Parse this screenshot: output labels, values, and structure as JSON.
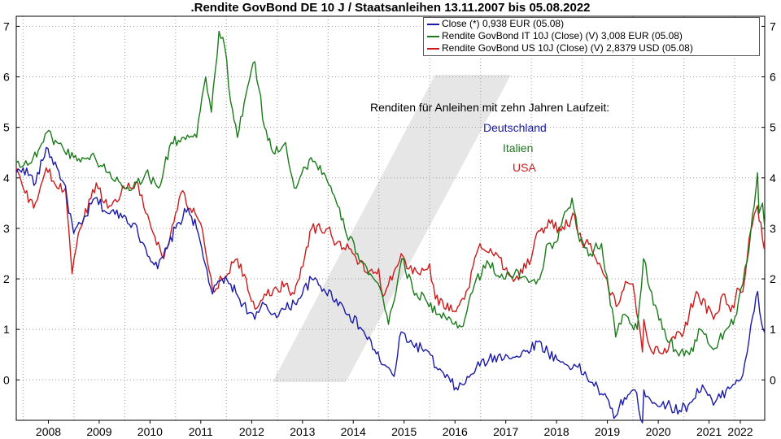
{
  "chart_data": {
    "type": "line",
    "title": ".Rendite GovBond DE 10 J / Staatsanleihen 13.11.2007 bis 05.08.2022",
    "xlabel": "",
    "ylabel": "",
    "xlim": [
      "2007-11-13",
      "2022-08-05"
    ],
    "ylim": [
      -0.8,
      7.2
    ],
    "y_ticks": [
      0,
      1,
      2,
      3,
      4,
      5,
      6,
      7
    ],
    "x_ticks": [
      "2008",
      "2009",
      "2010",
      "2011",
      "2012",
      "2013",
      "2014",
      "2015",
      "2016",
      "2017",
      "2018",
      "2019",
      "2020",
      "2021",
      "2022"
    ],
    "grid": true,
    "legend_position": "top-right",
    "legend": [
      "Close (*) 0,938 EUR (05.08)",
      "Rendite GovBond IT 10J (Close) (V) 3,008 EUR (05.08)",
      "Rendite GovBond US 10J (Close) (V) 2,8379 USD (05.08)"
    ],
    "annotations": {
      "heading": "Renditen für Anleihen mit zehn Jahren Laufzeit:",
      "de": "Deutschland",
      "it": "Italien",
      "us": "USA"
    },
    "series": [
      {
        "name": "Close (*) 0,938 EUR (05.08)",
        "color": "#1a1aa8",
        "points": [
          [
            "2007-11-13",
            4.1
          ],
          [
            "2008-01-01",
            4.2
          ],
          [
            "2008-04-01",
            3.9
          ],
          [
            "2008-06-15",
            4.6
          ],
          [
            "2008-09-01",
            4.2
          ],
          [
            "2008-10-20",
            3.9
          ],
          [
            "2008-12-30",
            2.9
          ],
          [
            "2009-03-01",
            3.1
          ],
          [
            "2009-06-01",
            3.6
          ],
          [
            "2009-09-01",
            3.3
          ],
          [
            "2009-12-01",
            3.3
          ],
          [
            "2010-03-01",
            3.1
          ],
          [
            "2010-06-01",
            2.6
          ],
          [
            "2010-08-25",
            2.2
          ],
          [
            "2010-11-01",
            2.6
          ],
          [
            "2011-01-01",
            3.0
          ],
          [
            "2011-04-01",
            3.4
          ],
          [
            "2011-06-01",
            3.0
          ],
          [
            "2011-08-01",
            2.3
          ],
          [
            "2011-09-23",
            1.7
          ],
          [
            "2011-12-01",
            2.0
          ],
          [
            "2012-02-01",
            1.9
          ],
          [
            "2012-05-01",
            1.5
          ],
          [
            "2012-07-23",
            1.2
          ],
          [
            "2012-10-01",
            1.5
          ],
          [
            "2012-12-01",
            1.3
          ],
          [
            "2013-03-01",
            1.4
          ],
          [
            "2013-06-01",
            1.6
          ],
          [
            "2013-09-05",
            2.0
          ],
          [
            "2013-12-01",
            1.8
          ],
          [
            "2014-03-01",
            1.6
          ],
          [
            "2014-06-01",
            1.3
          ],
          [
            "2014-09-01",
            1.0
          ],
          [
            "2014-12-01",
            0.6
          ],
          [
            "2015-02-01",
            0.3
          ],
          [
            "2015-04-20",
            0.07
          ],
          [
            "2015-06-10",
            0.95
          ],
          [
            "2015-09-01",
            0.7
          ],
          [
            "2015-12-01",
            0.6
          ],
          [
            "2016-03-01",
            0.2
          ],
          [
            "2016-07-08",
            -0.15
          ],
          [
            "2016-09-01",
            -0.1
          ],
          [
            "2016-12-01",
            0.25
          ],
          [
            "2017-03-01",
            0.4
          ],
          [
            "2017-07-01",
            0.5
          ],
          [
            "2017-10-01",
            0.45
          ],
          [
            "2018-02-15",
            0.75
          ],
          [
            "2018-05-01",
            0.55
          ],
          [
            "2018-08-01",
            0.35
          ],
          [
            "2018-12-01",
            0.25
          ],
          [
            "2019-03-15",
            -0.05
          ],
          [
            "2019-06-01",
            -0.3
          ],
          [
            "2019-08-30",
            -0.72
          ],
          [
            "2019-11-01",
            -0.35
          ],
          [
            "2020-01-15",
            -0.2
          ],
          [
            "2020-03-09",
            -0.85
          ],
          [
            "2020-03-19",
            -0.2
          ],
          [
            "2020-06-01",
            -0.45
          ],
          [
            "2020-09-01",
            -0.5
          ],
          [
            "2020-12-01",
            -0.6
          ],
          [
            "2021-02-01",
            -0.5
          ],
          [
            "2021-05-15",
            -0.1
          ],
          [
            "2021-08-01",
            -0.5
          ],
          [
            "2021-11-01",
            -0.2
          ],
          [
            "2022-01-15",
            0.0
          ],
          [
            "2022-03-01",
            0.1
          ],
          [
            "2022-04-15",
            0.8
          ],
          [
            "2022-06-15",
            1.75
          ],
          [
            "2022-07-15",
            1.1
          ],
          [
            "2022-08-05",
            0.938
          ]
        ]
      },
      {
        "name": "Rendite GovBond IT 10J (Close) (V) 3,008 EUR (05.08)",
        "color": "#1a7a1a",
        "points": [
          [
            "2007-11-13",
            4.3
          ],
          [
            "2008-03-01",
            4.3
          ],
          [
            "2008-06-20",
            4.9
          ],
          [
            "2008-09-01",
            4.7
          ],
          [
            "2008-12-30",
            4.4
          ],
          [
            "2009-03-01",
            4.4
          ],
          [
            "2009-06-01",
            4.4
          ],
          [
            "2009-09-01",
            4.1
          ],
          [
            "2009-12-01",
            3.9
          ],
          [
            "2010-03-01",
            3.8
          ],
          [
            "2010-06-01",
            4.1
          ],
          [
            "2010-09-01",
            3.8
          ],
          [
            "2010-12-01",
            4.7
          ],
          [
            "2011-03-01",
            4.8
          ],
          [
            "2011-06-01",
            4.8
          ],
          [
            "2011-08-05",
            6.0
          ],
          [
            "2011-09-15",
            5.3
          ],
          [
            "2011-11-09",
            6.9
          ],
          [
            "2011-12-20",
            6.6
          ],
          [
            "2012-02-01",
            5.5
          ],
          [
            "2012-03-20",
            4.8
          ],
          [
            "2012-06-01",
            5.8
          ],
          [
            "2012-07-24",
            6.3
          ],
          [
            "2012-10-01",
            5.0
          ],
          [
            "2012-12-01",
            4.5
          ],
          [
            "2013-03-01",
            4.7
          ],
          [
            "2013-05-03",
            3.8
          ],
          [
            "2013-09-01",
            4.4
          ],
          [
            "2013-12-01",
            4.1
          ],
          [
            "2014-02-01",
            3.7
          ],
          [
            "2014-05-01",
            3.0
          ],
          [
            "2014-08-01",
            2.5
          ],
          [
            "2014-11-01",
            2.1
          ],
          [
            "2015-02-01",
            1.6
          ],
          [
            "2015-03-11",
            1.1
          ],
          [
            "2015-06-15",
            2.4
          ],
          [
            "2015-09-01",
            1.8
          ],
          [
            "2015-12-01",
            1.6
          ],
          [
            "2016-03-01",
            1.3
          ],
          [
            "2016-08-15",
            1.05
          ],
          [
            "2016-12-01",
            2.0
          ],
          [
            "2017-03-01",
            2.3
          ],
          [
            "2017-06-15",
            2.0
          ],
          [
            "2017-09-01",
            2.1
          ],
          [
            "2017-12-01",
            2.0
          ],
          [
            "2018-03-01",
            2.0
          ],
          [
            "2018-05-01",
            2.7
          ],
          [
            "2018-06-01",
            2.6
          ],
          [
            "2018-10-20",
            3.6
          ],
          [
            "2018-12-01",
            2.9
          ],
          [
            "2019-03-01",
            2.5
          ],
          [
            "2019-05-20",
            2.7
          ],
          [
            "2019-08-30",
            0.85
          ],
          [
            "2019-11-01",
            1.3
          ],
          [
            "2020-02-01",
            1.0
          ],
          [
            "2020-03-17",
            2.4
          ],
          [
            "2020-05-01",
            1.8
          ],
          [
            "2020-08-01",
            1.0
          ],
          [
            "2020-11-01",
            0.6
          ],
          [
            "2021-02-10",
            0.5
          ],
          [
            "2021-05-01",
            1.0
          ],
          [
            "2021-08-01",
            0.6
          ],
          [
            "2021-11-01",
            1.0
          ],
          [
            "2022-01-15",
            1.3
          ],
          [
            "2022-03-01",
            1.9
          ],
          [
            "2022-04-15",
            2.6
          ],
          [
            "2022-06-14",
            4.1
          ],
          [
            "2022-06-25",
            3.3
          ],
          [
            "2022-07-20",
            3.5
          ],
          [
            "2022-08-05",
            3.008
          ]
        ]
      },
      {
        "name": "Rendite GovBond US 10J (Close) (V) 2,8379 USD (05.08)",
        "color": "#cc1a1a",
        "points": [
          [
            "2007-11-13",
            4.2
          ],
          [
            "2008-01-15",
            3.7
          ],
          [
            "2008-03-17",
            3.4
          ],
          [
            "2008-06-15",
            4.2
          ],
          [
            "2008-09-01",
            3.8
          ],
          [
            "2008-11-01",
            3.8
          ],
          [
            "2008-12-18",
            2.1
          ],
          [
            "2009-02-01",
            2.9
          ],
          [
            "2009-06-10",
            3.9
          ],
          [
            "2009-09-01",
            3.4
          ],
          [
            "2009-12-31",
            3.8
          ],
          [
            "2010-04-05",
            3.9
          ],
          [
            "2010-06-01",
            3.3
          ],
          [
            "2010-10-08",
            2.4
          ],
          [
            "2011-01-01",
            3.3
          ],
          [
            "2011-02-08",
            3.7
          ],
          [
            "2011-04-15",
            3.4
          ],
          [
            "2011-06-30",
            3.1
          ],
          [
            "2011-09-23",
            1.8
          ],
          [
            "2011-12-01",
            2.0
          ],
          [
            "2012-03-19",
            2.4
          ],
          [
            "2012-07-25",
            1.4
          ],
          [
            "2012-10-01",
            1.7
          ],
          [
            "2012-12-31",
            1.8
          ],
          [
            "2013-03-01",
            1.9
          ],
          [
            "2013-05-02",
            1.7
          ],
          [
            "2013-09-05",
            3.0
          ],
          [
            "2013-12-31",
            3.0
          ],
          [
            "2014-03-01",
            2.7
          ],
          [
            "2014-06-01",
            2.6
          ],
          [
            "2014-10-15",
            2.1
          ],
          [
            "2014-12-31",
            2.2
          ],
          [
            "2015-01-30",
            1.65
          ],
          [
            "2015-06-10",
            2.5
          ],
          [
            "2015-09-01",
            2.1
          ],
          [
            "2015-12-31",
            2.3
          ],
          [
            "2016-02-11",
            1.6
          ],
          [
            "2016-07-08",
            1.35
          ],
          [
            "2016-10-01",
            1.8
          ],
          [
            "2016-12-15",
            2.6
          ],
          [
            "2017-03-13",
            2.6
          ],
          [
            "2017-09-07",
            2.0
          ],
          [
            "2017-12-31",
            2.4
          ],
          [
            "2018-02-21",
            2.95
          ],
          [
            "2018-05-17",
            3.1
          ],
          [
            "2018-08-01",
            2.95
          ],
          [
            "2018-11-08",
            3.25
          ],
          [
            "2018-12-31",
            2.7
          ],
          [
            "2019-03-01",
            2.7
          ],
          [
            "2019-06-01",
            2.1
          ],
          [
            "2019-09-03",
            1.45
          ],
          [
            "2019-11-08",
            1.95
          ],
          [
            "2019-12-31",
            1.9
          ],
          [
            "2020-03-09",
            0.55
          ],
          [
            "2020-03-19",
            1.2
          ],
          [
            "2020-05-01",
            0.65
          ],
          [
            "2020-08-04",
            0.52
          ],
          [
            "2020-11-11",
            0.95
          ],
          [
            "2021-01-01",
            0.95
          ],
          [
            "2021-03-31",
            1.75
          ],
          [
            "2021-08-03",
            1.2
          ],
          [
            "2021-10-21",
            1.7
          ],
          [
            "2021-12-03",
            1.35
          ],
          [
            "2022-01-31",
            1.8
          ],
          [
            "2022-03-01",
            1.75
          ],
          [
            "2022-04-15",
            2.8
          ],
          [
            "2022-06-14",
            3.45
          ],
          [
            "2022-08-01",
            2.6
          ],
          [
            "2022-08-05",
            2.8379
          ]
        ]
      }
    ]
  }
}
